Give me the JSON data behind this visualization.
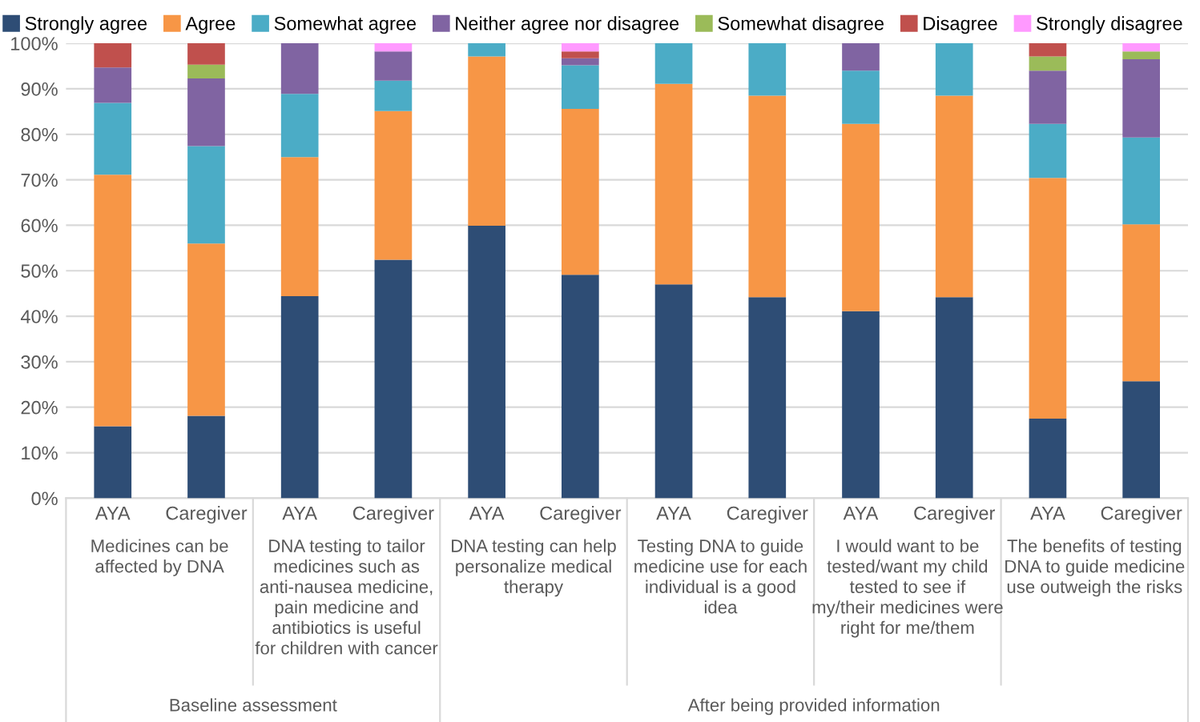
{
  "chart_data": {
    "type": "bar",
    "stacked": true,
    "categories": [
      "AYA",
      "Caregiver",
      "AYA",
      "Caregiver",
      "AYA",
      "Caregiver",
      "AYA",
      "Caregiver",
      "AYA",
      "Caregiver",
      "AYA",
      "Caregiver"
    ],
    "series": [
      {
        "name": "Strongly agree",
        "color": "#2e4d75",
        "values": [
          15.8,
          18.1,
          44.4,
          52.4,
          59.9,
          49.1,
          47.0,
          44.2,
          41.1,
          44.2,
          17.5,
          25.7
        ]
      },
      {
        "name": "Agree",
        "color": "#f79646",
        "values": [
          55.3,
          37.9,
          30.6,
          32.7,
          37.2,
          36.5,
          44.1,
          44.3,
          41.2,
          44.3,
          52.9,
          34.5
        ]
      },
      {
        "name": "Somewhat agree",
        "color": "#4bacc6",
        "values": [
          15.8,
          21.4,
          13.9,
          6.7,
          2.9,
          9.6,
          8.9,
          11.5,
          11.7,
          11.5,
          11.9,
          19.1
        ]
      },
      {
        "name": "Neither agree nor disagree",
        "color": "#8064a2",
        "values": [
          7.8,
          14.9,
          11.1,
          6.4,
          0,
          1.5,
          0,
          0,
          6.0,
          0,
          11.7,
          17.2
        ]
      },
      {
        "name": "Somewhat disagree",
        "color": "#9bbb59",
        "values": [
          0,
          3.0,
          0,
          0,
          0,
          0,
          0,
          0,
          0,
          0,
          3.1,
          1.7
        ]
      },
      {
        "name": "Disagree",
        "color": "#c0504d",
        "values": [
          5.3,
          4.7,
          0,
          0,
          0,
          1.5,
          0,
          0,
          0,
          0,
          2.9,
          0
        ]
      },
      {
        "name": "Strongly disagree",
        "color": "#ff99ff",
        "values": [
          0,
          0,
          0,
          1.8,
          0,
          1.8,
          0,
          0,
          0,
          0,
          0,
          1.8
        ]
      }
    ],
    "ylim": [
      0,
      100
    ],
    "yticks": [
      {
        "value": 0,
        "label": "0%"
      },
      {
        "value": 10,
        "label": "10%"
      },
      {
        "value": 20,
        "label": "20%"
      },
      {
        "value": 30,
        "label": "30%"
      },
      {
        "value": 40,
        "label": "40%"
      },
      {
        "value": 50,
        "label": "50%"
      },
      {
        "value": 60,
        "label": "60%"
      },
      {
        "value": 70,
        "label": "70%"
      },
      {
        "value": 80,
        "label": "80%"
      },
      {
        "value": 90,
        "label": "90%"
      },
      {
        "value": 100,
        "label": "100%"
      }
    ],
    "grid": "y",
    "legend": "top",
    "annotations": [
      "Medicines can be affected by DNA",
      "DNA testing to tailor medicines such as anti-nausea medicine, pain medicine and antibiotics is useful for children with cancer",
      "DNA testing can help personalize medical therapy",
      "Testing DNA to guide medicine use for each individual is a good idea",
      "I would want to be tested/want my child tested to see if my/their medicines were right for me/them",
      "The benefits of testing DNA to guide medicine use outweigh the risks",
      "Baseline assessment",
      "After being provided information"
    ]
  }
}
